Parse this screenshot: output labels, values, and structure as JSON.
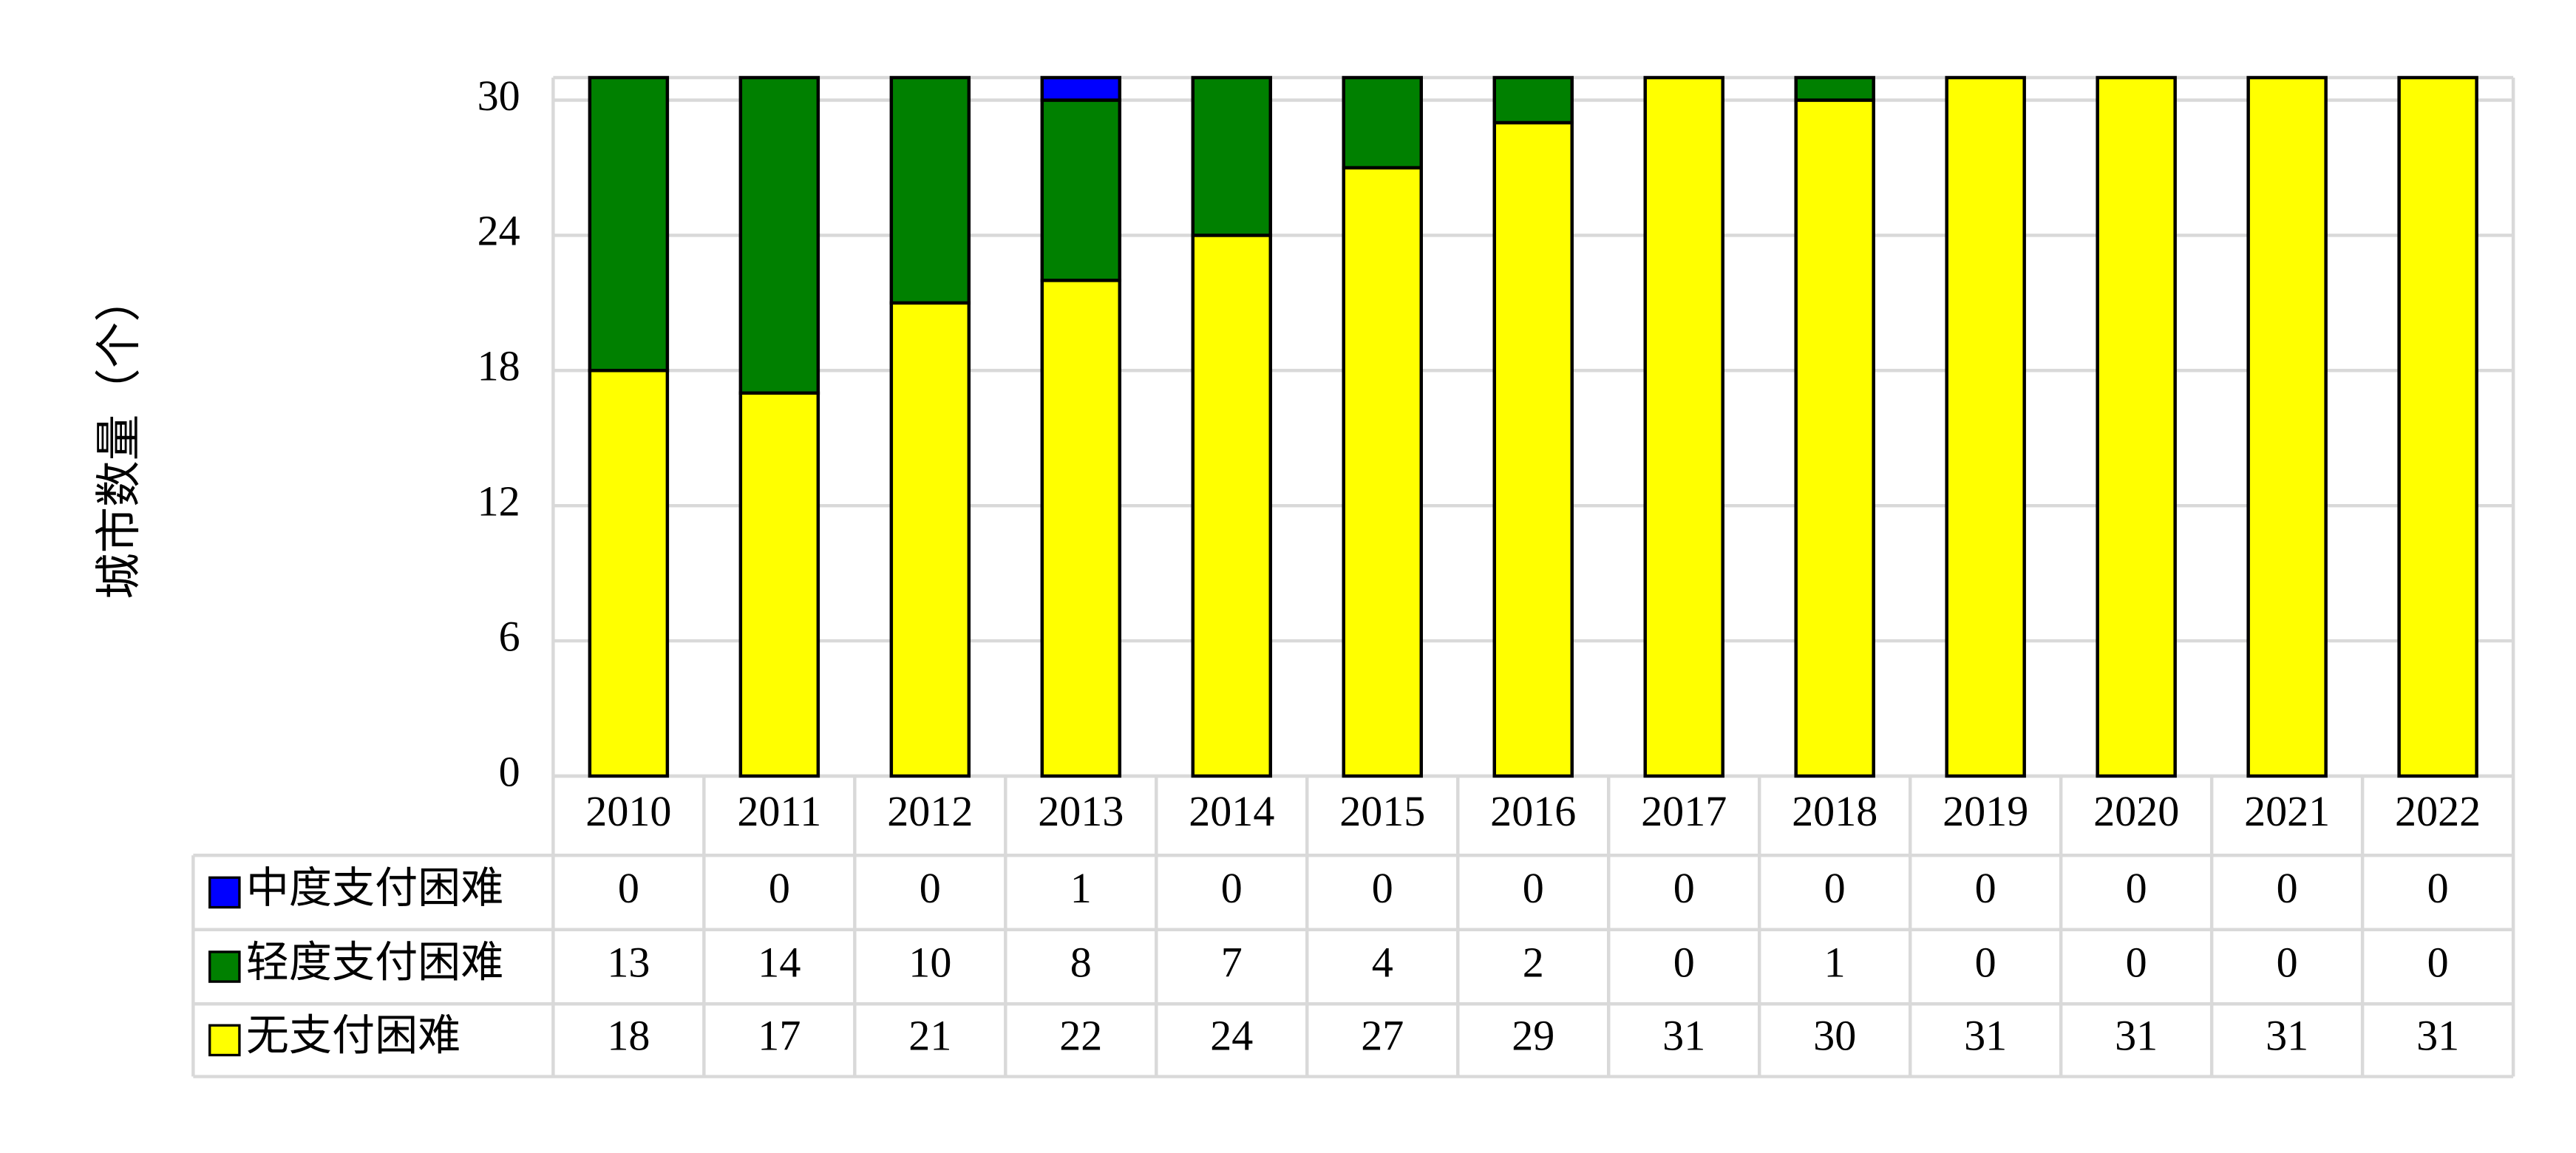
{
  "chart_data": {
    "type": "stacked_bar",
    "y_label": "城市数量（个）",
    "categories": [
      "2010",
      "2011",
      "2012",
      "2013",
      "2014",
      "2015",
      "2016",
      "2017",
      "2018",
      "2019",
      "2020",
      "2021",
      "2022"
    ],
    "series": [
      {
        "name": "中度支付困难",
        "color": "#0000ff",
        "values": [
          0,
          0,
          0,
          1,
          0,
          0,
          0,
          0,
          0,
          0,
          0,
          0,
          0
        ]
      },
      {
        "name": "轻度支付困难",
        "color": "#008000",
        "values": [
          13,
          14,
          10,
          8,
          7,
          4,
          2,
          0,
          1,
          0,
          0,
          0,
          0
        ]
      },
      {
        "name": "无支付困难",
        "color": "#ffff00",
        "values": [
          18,
          17,
          21,
          22,
          24,
          27,
          29,
          31,
          30,
          31,
          31,
          31,
          31
        ]
      }
    ],
    "ylim": [
      0,
      31
    ],
    "yticks": [
      0,
      6,
      12,
      18,
      24,
      30
    ],
    "grid": true
  }
}
